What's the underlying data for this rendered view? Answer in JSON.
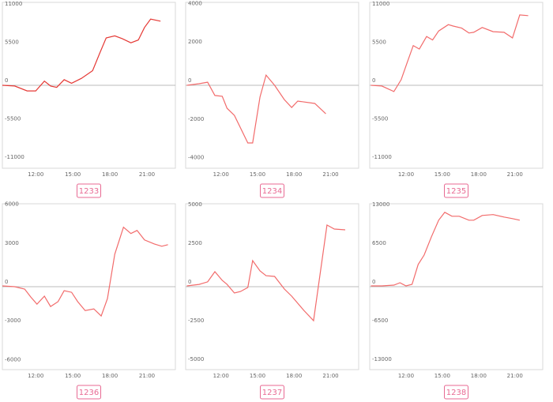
{
  "chart_data": [
    {
      "type": "line",
      "label": "1233",
      "color": "#e53935",
      "x": [
        9.3,
        10.3,
        11.3,
        12,
        12.7,
        13.2,
        13.7,
        14.3,
        14.9,
        15.7,
        16.6,
        17.2,
        17.7,
        18.4,
        19,
        19.7,
        20.3,
        20.8,
        21.3,
        22.1
      ],
      "values": [
        0,
        -100,
        -800,
        -800,
        600,
        -100,
        -300,
        800,
        300,
        1000,
        2100,
        4700,
        6800,
        7100,
        6700,
        6100,
        6500,
        8300,
        9500,
        9200
      ],
      "xlim": [
        9.3,
        23.3
      ],
      "xticks": [
        {
          "value": 12,
          "label": "12:00"
        },
        {
          "value": 15,
          "label": "15:00"
        },
        {
          "value": 18,
          "label": "18:00"
        },
        {
          "value": 21,
          "label": "21:00"
        }
      ],
      "ylim": [
        -11900,
        11900
      ],
      "yticks": [
        11000,
        5500,
        0,
        -5500,
        -11000
      ]
    },
    {
      "type": "line",
      "label": "1234",
      "color": "#f26b6b",
      "x": [
        9.2,
        10.2,
        10.9,
        11.5,
        12.1,
        12.5,
        13.1,
        14.2,
        14.6,
        15.2,
        15.7,
        16.4,
        17.2,
        17.8,
        18.3,
        19.7,
        20.6
      ],
      "values": [
        0,
        80,
        160,
        -530,
        -570,
        -1190,
        -1560,
        -2990,
        -2990,
        -610,
        530,
        0,
        -740,
        -1150,
        -820,
        -940,
        -1480
      ],
      "xlim": [
        9.1,
        23.3
      ],
      "xticks": [
        {
          "value": 12,
          "label": "12:00"
        },
        {
          "value": 15,
          "label": "15:00"
        },
        {
          "value": 18,
          "label": "18:00"
        },
        {
          "value": 21,
          "label": "21:00"
        }
      ],
      "ylim": [
        -4300,
        4300
      ],
      "yticks": [
        4000,
        2000,
        0,
        -2000,
        -4000
      ]
    },
    {
      "type": "line",
      "label": "1235",
      "color": "#f26b6b",
      "x": [
        9.1,
        10,
        11,
        11.6,
        12.1,
        12.6,
        13.1,
        13.7,
        14.2,
        14.7,
        15.5,
        15.9,
        16.6,
        17.2,
        17.6,
        18.3,
        19.2,
        20.1,
        20.8,
        21.4,
        22.1
      ],
      "values": [
        0,
        -100,
        -900,
        800,
        3300,
        5700,
        5200,
        7000,
        6500,
        7800,
        8700,
        8500,
        8200,
        7500,
        7600,
        8300,
        7700,
        7600,
        6800,
        10100,
        10000
      ],
      "xlim": [
        9.0,
        23.3
      ],
      "xticks": [
        {
          "value": 12,
          "label": "12:00"
        },
        {
          "value": 15,
          "label": "15:00"
        },
        {
          "value": 18,
          "label": "18:00"
        },
        {
          "value": 21,
          "label": "21:00"
        }
      ],
      "ylim": [
        -11900,
        11900
      ],
      "yticks": [
        11000,
        5500,
        0,
        -5500,
        -11000
      ]
    },
    {
      "type": "line",
      "label": "1236",
      "color": "#f26b6b",
      "x": [
        9.3,
        10.3,
        11.1,
        11.6,
        12.1,
        12.7,
        13.2,
        13.8,
        14.3,
        14.9,
        15.4,
        16,
        16.7,
        17.3,
        17.8,
        18.4,
        19.1,
        19.7,
        20.2,
        20.8,
        21.6,
        22.2,
        22.7
      ],
      "values": [
        60,
        0,
        -180,
        -800,
        -1350,
        -730,
        -1530,
        -1160,
        -310,
        -430,
        -1160,
        -1840,
        -1710,
        -2260,
        -920,
        2510,
        4590,
        4100,
        4340,
        3610,
        3300,
        3120,
        3240
      ],
      "xlim": [
        9.3,
        23.3
      ],
      "xticks": [
        {
          "value": 12,
          "label": "12:00"
        },
        {
          "value": 15,
          "label": "15:00"
        },
        {
          "value": 18,
          "label": "18:00"
        },
        {
          "value": 21,
          "label": "21:00"
        }
      ],
      "ylim": [
        -6400,
        6400
      ],
      "yticks": [
        6000,
        3000,
        0,
        -3000,
        -6000
      ]
    },
    {
      "type": "line",
      "label": "1237",
      "color": "#f26b6b",
      "x": [
        9.2,
        10.2,
        10.9,
        11.5,
        12.1,
        12.5,
        13.1,
        13.6,
        14.2,
        14.6,
        15.2,
        15.7,
        16.4,
        17.2,
        17.8,
        18.3,
        18.8,
        19.6,
        20.7,
        21.3,
        22.2
      ],
      "values": [
        50,
        150,
        310,
        970,
        410,
        150,
        -410,
        -310,
        -50,
        1680,
        1020,
        710,
        660,
        -150,
        -610,
        -1070,
        -1530,
        -2190,
        3980,
        3720,
        3670
      ],
      "xlim": [
        9.1,
        23.3
      ],
      "xticks": [
        {
          "value": 12,
          "label": "12:00"
        },
        {
          "value": 15,
          "label": "15:00"
        },
        {
          "value": 18,
          "label": "18:00"
        },
        {
          "value": 21,
          "label": "21:00"
        }
      ],
      "ylim": [
        -5350,
        5350
      ],
      "yticks": [
        5000,
        2500,
        0,
        -2500,
        -5000
      ]
    },
    {
      "type": "line",
      "label": "1238",
      "color": "#f26b6b",
      "x": [
        9.1,
        10,
        11,
        11.5,
        12,
        12.5,
        13,
        13.5,
        14.1,
        14.7,
        15.2,
        15.8,
        16.4,
        17.2,
        17.6,
        18.3,
        19.2,
        20.1,
        20.8,
        21.4
      ],
      "values": [
        130,
        130,
        270,
        660,
        130,
        400,
        3720,
        5310,
        8360,
        11150,
        12470,
        11810,
        11810,
        11150,
        11150,
        11940,
        12080,
        11680,
        11410,
        11150
      ],
      "xlim": [
        9.0,
        23.3
      ],
      "xticks": [
        {
          "value": 12,
          "label": "12:00"
        },
        {
          "value": 15,
          "label": "15:00"
        },
        {
          "value": 18,
          "label": "18:00"
        },
        {
          "value": 21,
          "label": "21:00"
        }
      ],
      "ylim": [
        -13900,
        13900
      ],
      "yticks": [
        13000,
        6500,
        0,
        -6500,
        -13000
      ]
    }
  ]
}
